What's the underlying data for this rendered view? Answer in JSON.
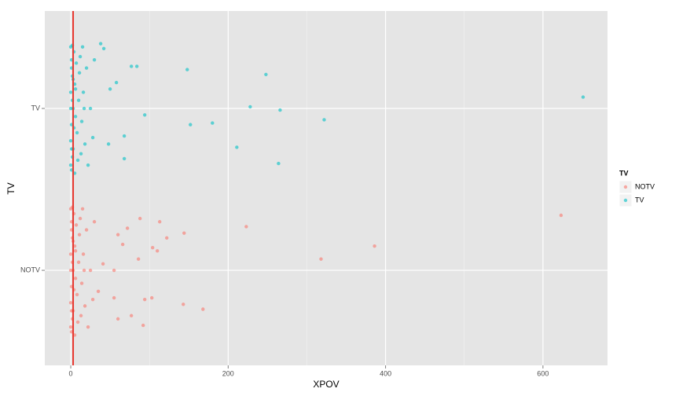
{
  "chart_data": {
    "type": "scatter",
    "x_label": "XPOV",
    "y_label": "TV",
    "legend_title": "TV",
    "xlim": [
      -33,
      682
    ],
    "xticks": [
      0,
      200,
      400,
      600
    ],
    "ylim": [
      0.413,
      2.602
    ],
    "yticks": [
      {
        "value": 1,
        "label": "NOTV"
      },
      {
        "value": 2,
        "label": "TV"
      }
    ],
    "grid": true,
    "legend": "right",
    "vline": 3,
    "vline_color": "#E8382F",
    "series": [
      {
        "name": "NOTV",
        "color": "#F8766D",
        "x": [
          623,
          386,
          318,
          223,
          144,
          122,
          113,
          104,
          110,
          88,
          72,
          60,
          66,
          86,
          55,
          143,
          168,
          103,
          94,
          92,
          77,
          60,
          55,
          41,
          35,
          0,
          1,
          2,
          0,
          3,
          1,
          0,
          2,
          1,
          4,
          5,
          6,
          3,
          7,
          8,
          10,
          12,
          9,
          14,
          11,
          16,
          18,
          20,
          22,
          25,
          13,
          15,
          2,
          0,
          1,
          4,
          6,
          28,
          30,
          17,
          5,
          0,
          2,
          1,
          3
        ],
        "y": [
          1.34,
          1.15,
          1.07,
          1.27,
          1.23,
          1.2,
          1.3,
          1.14,
          1.12,
          1.32,
          1.26,
          1.22,
          1.16,
          1.07,
          1.0,
          0.79,
          0.76,
          0.83,
          0.82,
          0.66,
          0.72,
          0.7,
          0.83,
          1.04,
          0.87,
          1.38,
          1.3,
          1.2,
          1.1,
          1.0,
          0.9,
          0.8,
          0.7,
          0.62,
          1.35,
          1.15,
          0.95,
          0.75,
          1.28,
          0.85,
          1.05,
          1.32,
          0.68,
          0.92,
          1.22,
          1.1,
          0.78,
          1.25,
          0.65,
          1.0,
          0.72,
          1.38,
          1.05,
          0.65,
          1.25,
          0.88,
          1.12,
          0.82,
          1.3,
          1.0,
          0.6,
          1.0,
          1.39,
          0.75,
          1.18
        ]
      },
      {
        "name": "TV",
        "color": "#00BFC4",
        "x": [
          651,
          248,
          148,
          228,
          266,
          322,
          180,
          152,
          94,
          211,
          264,
          68,
          68,
          77,
          84,
          58,
          50,
          38,
          42,
          48,
          0,
          1,
          2,
          0,
          3,
          1,
          0,
          2,
          1,
          4,
          5,
          6,
          3,
          7,
          8,
          10,
          12,
          9,
          14,
          11,
          16,
          18,
          20,
          22,
          25,
          13,
          15,
          2,
          0,
          1,
          4,
          6,
          28,
          30,
          17,
          5,
          0,
          2,
          1,
          3
        ],
        "y": [
          2.07,
          2.21,
          2.24,
          2.01,
          1.99,
          1.93,
          1.91,
          1.9,
          1.96,
          1.76,
          1.66,
          1.83,
          1.69,
          2.26,
          2.26,
          2.16,
          2.12,
          2.4,
          2.37,
          1.78,
          2.38,
          2.3,
          2.2,
          2.1,
          2.0,
          1.9,
          1.8,
          1.7,
          1.62,
          2.35,
          2.15,
          1.95,
          1.75,
          2.28,
          1.85,
          2.05,
          2.32,
          1.68,
          1.92,
          2.22,
          2.1,
          1.78,
          2.25,
          1.65,
          2.0,
          1.72,
          2.38,
          2.05,
          1.65,
          2.25,
          1.88,
          2.12,
          1.82,
          2.3,
          2.0,
          1.6,
          2.0,
          2.39,
          1.75,
          2.18
        ]
      }
    ]
  }
}
